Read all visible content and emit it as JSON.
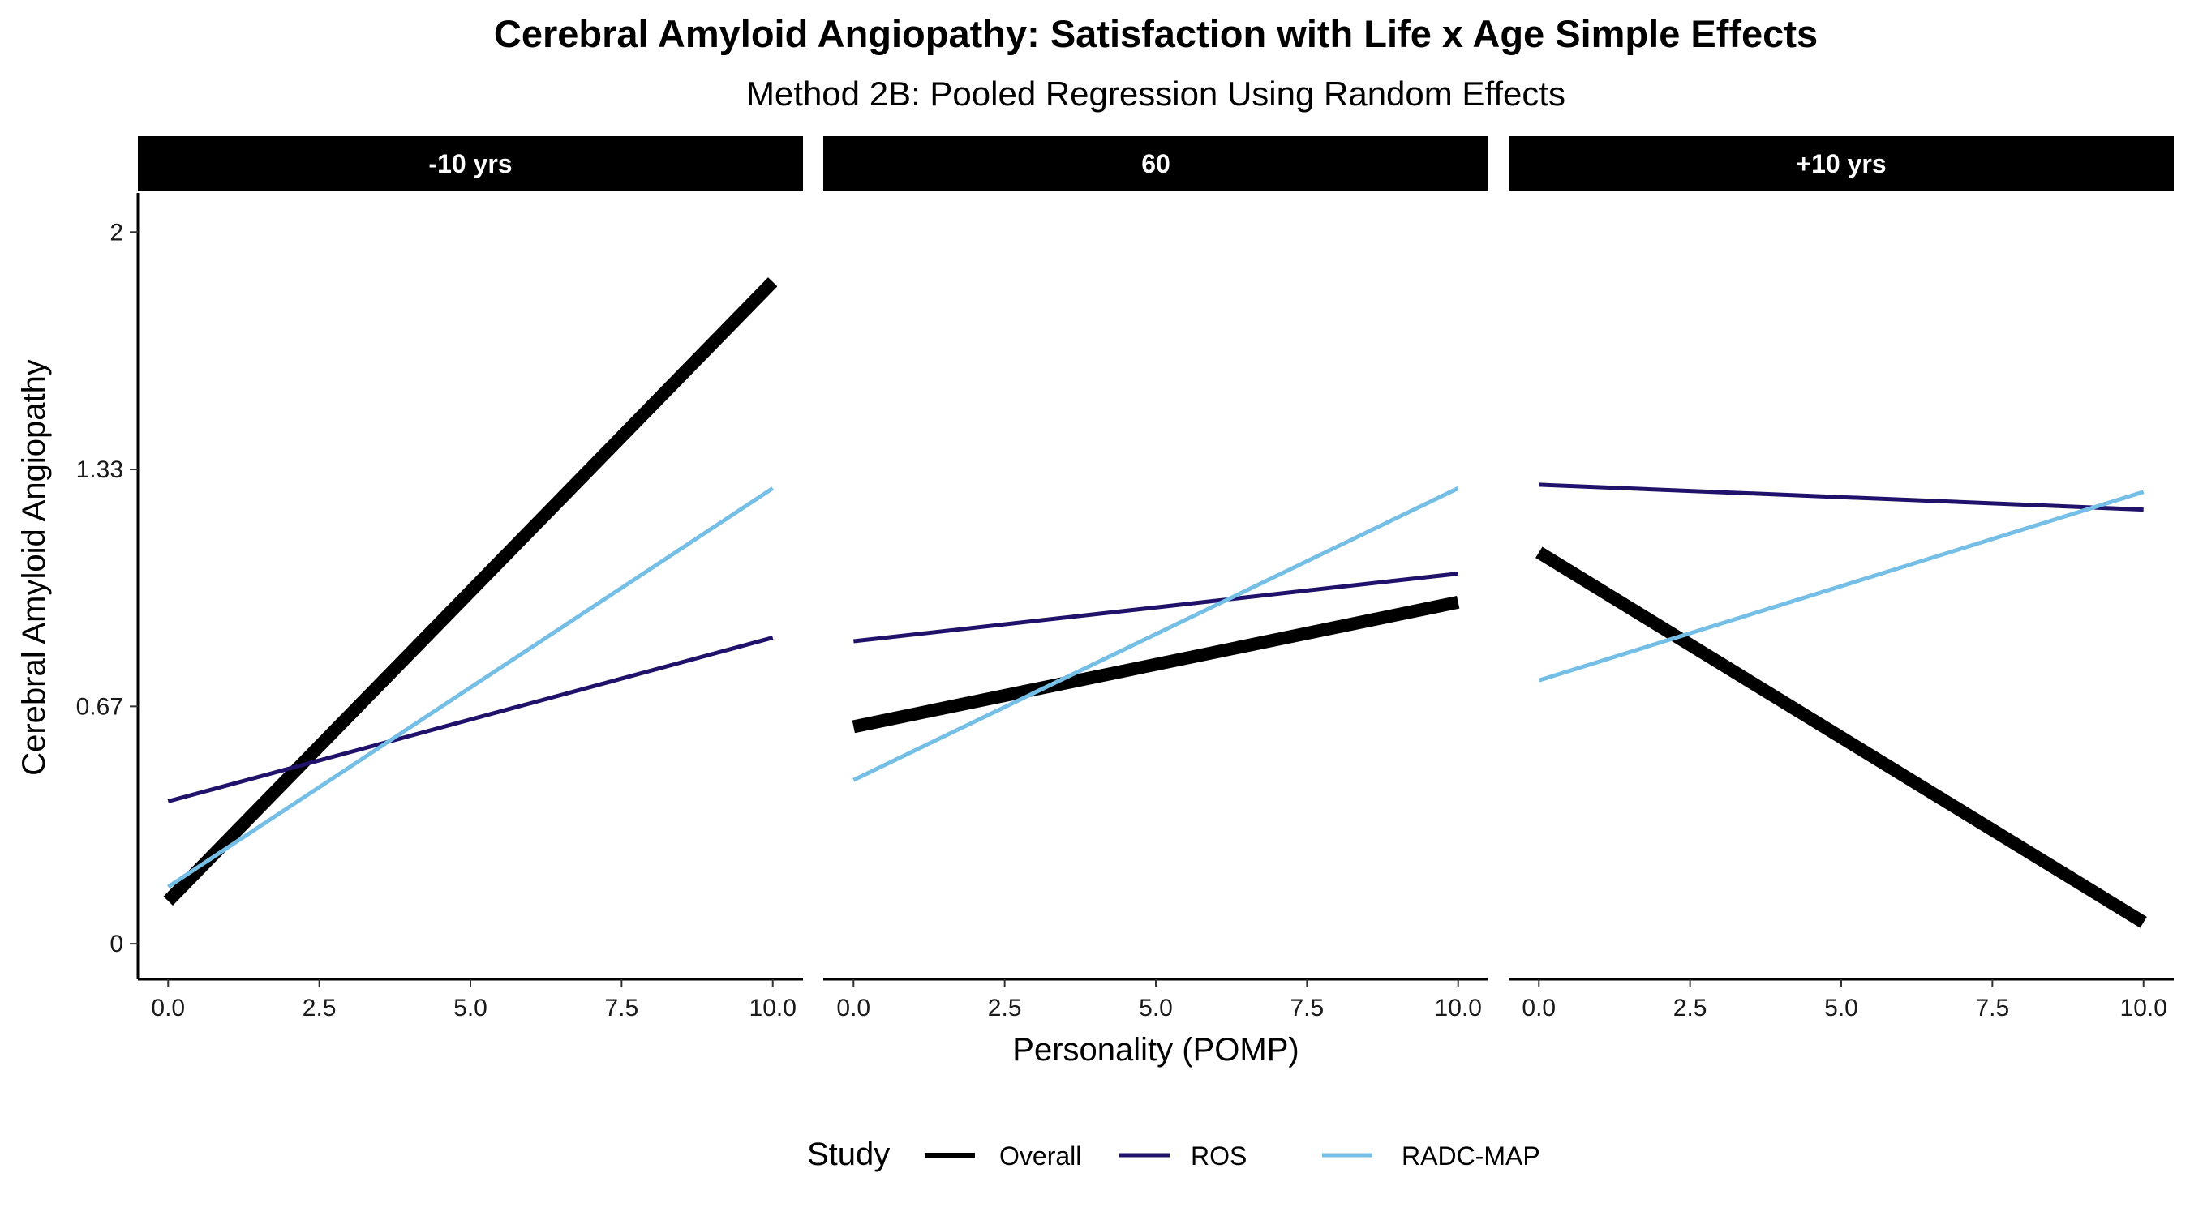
{
  "chart_data": {
    "type": "line",
    "title": "Cerebral Amyloid Angiopathy: Satisfaction with Life x Age Simple Effects",
    "subtitle": "Method 2B: Pooled Regression Using Random Effects",
    "xlabel": "Personality (POMP)",
    "ylabel": "Cerebral Amyloid Angiopathy",
    "xlim": [
      -0.5,
      10.5
    ],
    "ylim": [
      -0.1,
      2.11
    ],
    "x_ticks": [
      "0.0",
      "2.5",
      "5.0",
      "7.5",
      "10.0"
    ],
    "x_tick_values": [
      0,
      2.5,
      5,
      7.5,
      10
    ],
    "y_ticks": [
      "0",
      "0.67",
      "1.33",
      "2"
    ],
    "y_tick_values": [
      0,
      0.667,
      1.333,
      2
    ],
    "legend": {
      "title": "Study",
      "position": "bottom"
    },
    "series_styles": [
      {
        "name": "Overall",
        "color": "#000000",
        "width": "thick"
      },
      {
        "name": "ROS",
        "color": "#20116b",
        "width": "thin"
      },
      {
        "name": "RADC-MAP",
        "color": "#75bfe6",
        "width": "thin"
      }
    ],
    "panels": [
      {
        "label": "-10 yrs",
        "series": [
          {
            "name": "Overall",
            "x": [
              0,
              10
            ],
            "y": [
              0.12,
              1.86
            ]
          },
          {
            "name": "ROS",
            "x": [
              0,
              10
            ],
            "y": [
              0.4,
              0.86
            ]
          },
          {
            "name": "RADC-MAP",
            "x": [
              0,
              10
            ],
            "y": [
              0.16,
              1.28
            ]
          }
        ]
      },
      {
        "label": "60",
        "series": [
          {
            "name": "Overall",
            "x": [
              0,
              10
            ],
            "y": [
              0.61,
              0.96
            ]
          },
          {
            "name": "ROS",
            "x": [
              0,
              10
            ],
            "y": [
              0.85,
              1.04
            ]
          },
          {
            "name": "RADC-MAP",
            "x": [
              0,
              10
            ],
            "y": [
              0.46,
              1.28
            ]
          }
        ]
      },
      {
        "label": "+10 yrs",
        "series": [
          {
            "name": "Overall",
            "x": [
              0,
              10
            ],
            "y": [
              1.1,
              0.06
            ]
          },
          {
            "name": "ROS",
            "x": [
              0,
              10
            ],
            "y": [
              1.29,
              1.22
            ]
          },
          {
            "name": "RADC-MAP",
            "x": [
              0,
              10
            ],
            "y": [
              0.74,
              1.27
            ]
          }
        ]
      }
    ]
  }
}
